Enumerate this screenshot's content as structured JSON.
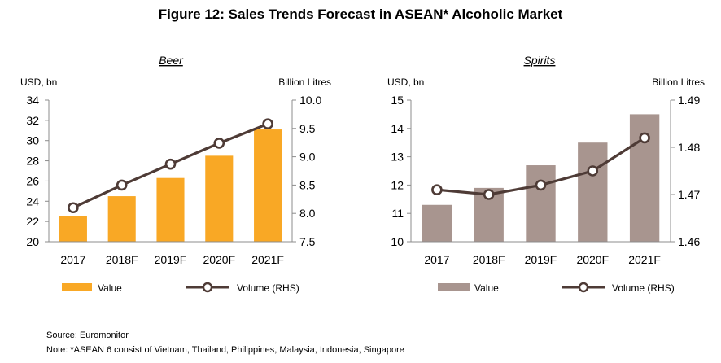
{
  "figure_title": "Figure 12: Sales Trends Forecast in ASEAN* Alcoholic Market",
  "chart_data": [
    {
      "type": "bar",
      "title": "Beer",
      "categories": [
        "2017",
        "2018F",
        "2019F",
        "2020F",
        "2021F"
      ],
      "ylabel": "USD, bn",
      "y2label": "Billion Litres",
      "ylim": [
        20,
        34
      ],
      "yticks": [
        "20",
        "22",
        "24",
        "26",
        "28",
        "30",
        "32",
        "34"
      ],
      "y2lim": [
        7.5,
        10.0
      ],
      "y2ticks": [
        "7.5",
        "8.0",
        "8.5",
        "9.0",
        "9.5",
        "10.0"
      ],
      "grid": false,
      "legend_position": "bottom",
      "series": [
        {
          "name": "Value",
          "kind": "bar",
          "axis": "left",
          "color": "#f9a825",
          "values": [
            22.5,
            24.5,
            26.3,
            28.5,
            31.1
          ]
        },
        {
          "name": "Volume (RHS)",
          "kind": "line",
          "axis": "right",
          "color": "#4e3b36",
          "values": [
            8.1,
            8.5,
            8.87,
            9.24,
            9.58
          ]
        }
      ]
    },
    {
      "type": "bar",
      "title": "Spirits",
      "categories": [
        "2017",
        "2018F",
        "2019F",
        "2020F",
        "2021F"
      ],
      "ylabel": "USD, bn",
      "y2label": "Billion Litres",
      "ylim": [
        10,
        15
      ],
      "yticks": [
        "10",
        "11",
        "12",
        "13",
        "14",
        "15"
      ],
      "y2lim": [
        1.46,
        1.49
      ],
      "y2ticks": [
        "1.46",
        "1.47",
        "1.48",
        "1.49"
      ],
      "grid": false,
      "legend_position": "bottom",
      "series": [
        {
          "name": "Value",
          "kind": "bar",
          "axis": "left",
          "color": "#a8958f",
          "values": [
            11.3,
            11.9,
            12.7,
            13.5,
            14.5
          ]
        },
        {
          "name": "Volume (RHS)",
          "kind": "line",
          "axis": "right",
          "color": "#4e3b36",
          "values": [
            1.471,
            1.47,
            1.472,
            1.475,
            1.482
          ]
        }
      ]
    }
  ],
  "source": "Source: Euromonitor",
  "note": "Note: *ASEAN 6 consist of Vietnam, Thailand, Philippines, Malaysia, Indonesia, Singapore"
}
